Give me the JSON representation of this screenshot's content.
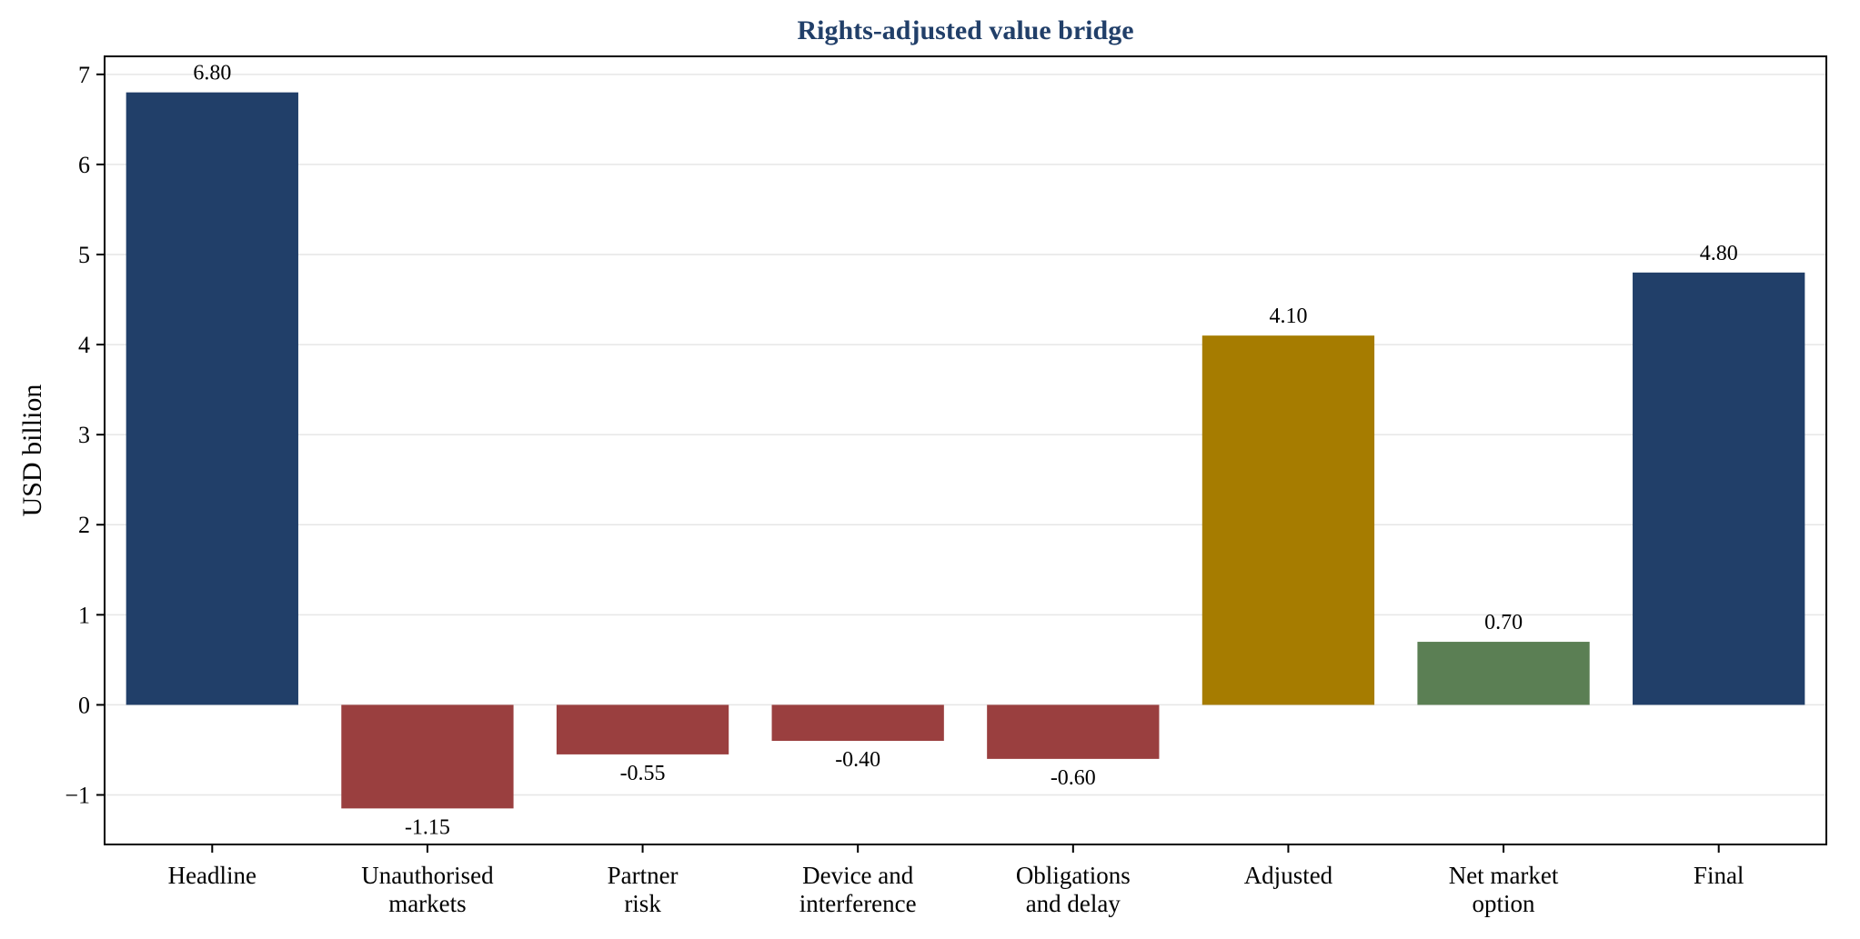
{
  "chart_data": {
    "type": "bar",
    "title": "Rights-adjusted value bridge",
    "xlabel": "",
    "ylabel": "USD billion",
    "ylim": [
      -1.55,
      7.2
    ],
    "yticks": [
      7,
      6,
      5,
      4,
      3,
      2,
      1,
      0,
      -1
    ],
    "ytick_labels": [
      "7",
      "6",
      "5",
      "4",
      "3",
      "2",
      "1",
      "0",
      "−1"
    ],
    "grid": true,
    "categories": [
      [
        "Headline"
      ],
      [
        "Unauthorised",
        "markets"
      ],
      [
        "Partner",
        "risk"
      ],
      [
        "Device and",
        "interference"
      ],
      [
        "Obligations",
        "and delay"
      ],
      [
        "Adjusted"
      ],
      [
        "Net market",
        "option"
      ],
      [
        "Final"
      ]
    ],
    "values": [
      6.8,
      -1.15,
      -0.55,
      -0.4,
      -0.6,
      4.1,
      0.7,
      4.8
    ],
    "value_labels": [
      "6.80",
      "-1.15",
      "-0.55",
      "-0.40",
      "-0.60",
      "4.10",
      "0.70",
      "4.80"
    ],
    "bar_colors": [
      "#213f69",
      "#9a3f3f",
      "#9a3f3f",
      "#9a3f3f",
      "#9a3f3f",
      "#a67c00",
      "#5b7f54",
      "#213f69"
    ],
    "colors": {
      "title": "#213f69",
      "axis": "#000000",
      "grid": "#e6e6e6"
    }
  }
}
